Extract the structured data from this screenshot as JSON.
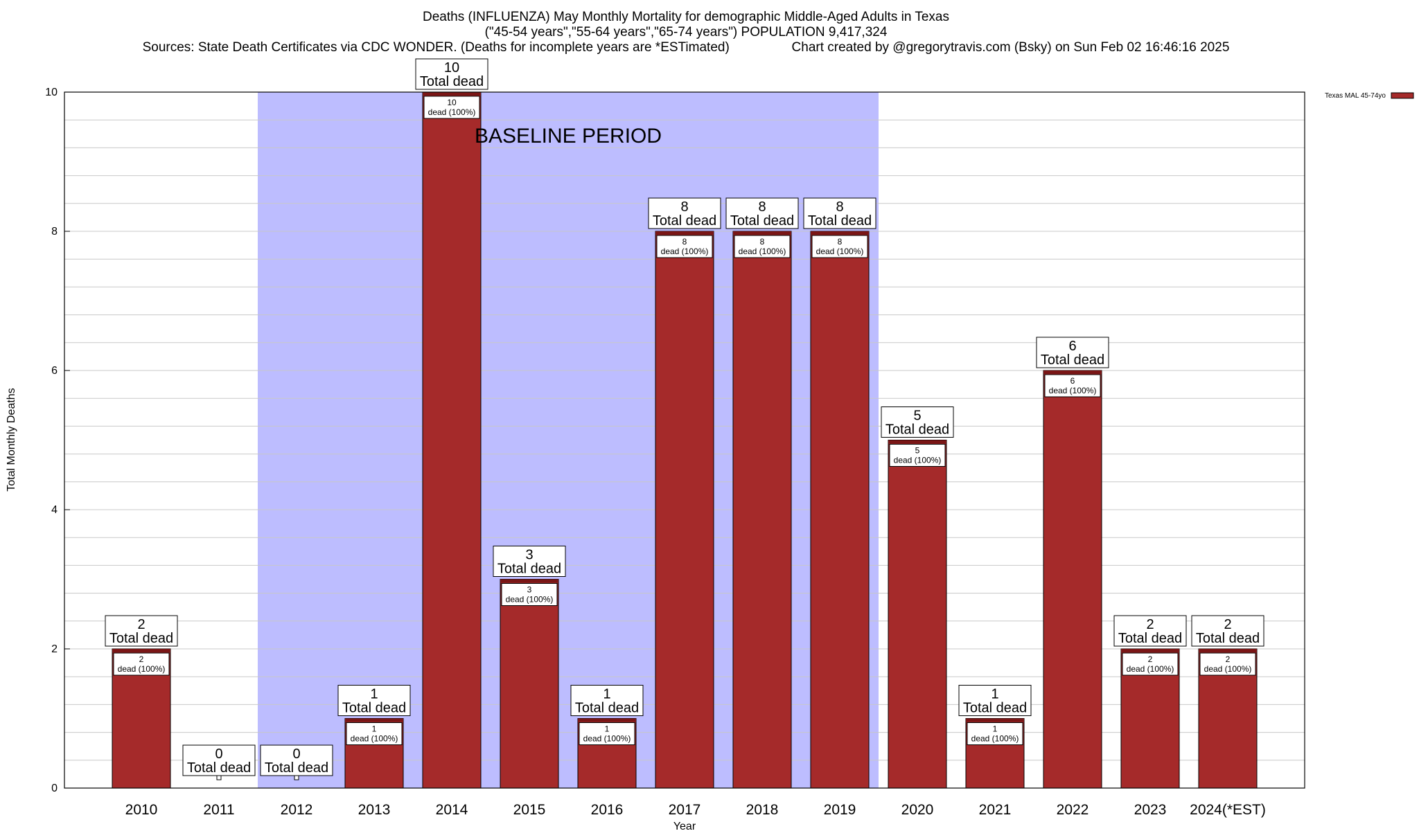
{
  "chart_data": {
    "type": "bar",
    "title": "Deaths (INFLUENZA) May Monthly Mortality for demographic Middle-Aged Adults in Texas",
    "subtitle": "(\"45-54 years\",\"55-64 years\",\"65-74 years\") POPULATION 9,417,324",
    "source_line_left": "Sources: State Death Certificates via CDC WONDER. (Deaths for incomplete years are *ESTimated)",
    "source_line_right": "Chart created by @gregorytravis.com (Bsky) on Sun Feb 02 16:46:16 2025",
    "xlabel": "Year",
    "ylabel": "Total Monthly Deaths",
    "ylim": [
      0,
      10
    ],
    "yticks": [
      "0",
      "2",
      "4",
      "6",
      "8",
      "10"
    ],
    "grid": true,
    "categories": [
      "2010",
      "2011",
      "2012",
      "2013",
      "2014",
      "2015",
      "2016",
      "2017",
      "2018",
      "2019",
      "2020",
      "2021",
      "2022",
      "2023",
      "2024(*EST)"
    ],
    "series": [
      {
        "name": "Texas MAL 45-74yo",
        "color": "#a52a2a",
        "values": [
          2,
          0,
          0,
          1,
          10,
          3,
          1,
          8,
          8,
          8,
          5,
          1,
          6,
          2,
          2
        ]
      }
    ],
    "top_label_suffix": "Total dead",
    "inner_label_suffix": "dead (100%)",
    "annotation": {
      "text": "BASELINE PERIOD",
      "from_category": "2012",
      "to_category": "2019",
      "color": "#bdbdff"
    },
    "legend_position": "top-right"
  }
}
